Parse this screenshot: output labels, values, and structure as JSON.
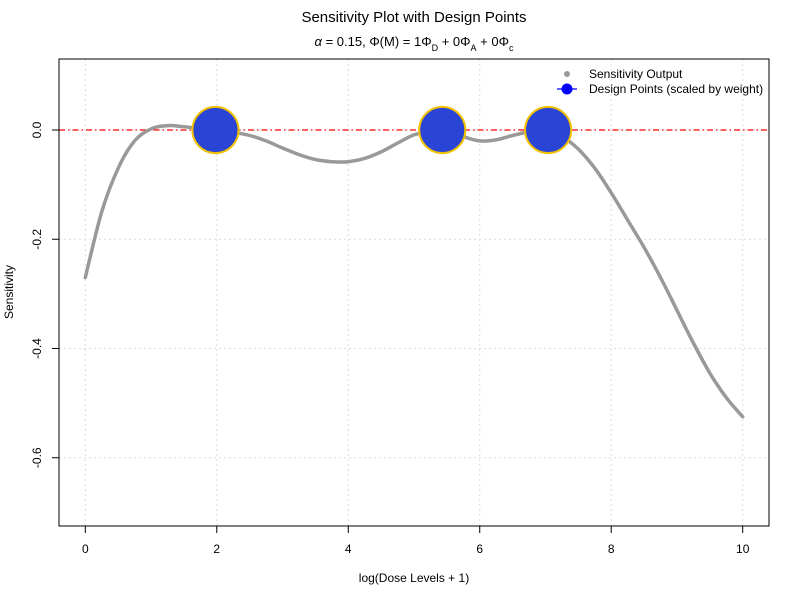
{
  "chart_data": {
    "type": "line",
    "title": "Sensitivity Plot with Design Points",
    "subtitle": {
      "alpha_symbol": "α",
      "alpha_text": " = 0.15, ",
      "phi_text": "Φ(M) = 1Φ",
      "sub_d": "D",
      "plus_a": " + 0Φ",
      "sub_a": "A",
      "plus_c": " + 0Φ",
      "sub_c": "c"
    },
    "xlabel": "log(Dose Levels + 1)",
    "ylabel": "Sensitivity",
    "xlim": [
      -0.4,
      10.4
    ],
    "ylim": [
      -0.725,
      0.13
    ],
    "x_ticks": [
      0,
      2,
      4,
      6,
      8,
      10
    ],
    "x_tick_labels": [
      "0",
      "2",
      "4",
      "6",
      "8",
      "10"
    ],
    "y_ticks": [
      0,
      -0.2,
      -0.4,
      -0.6
    ],
    "y_tick_labels": [
      "0.0",
      "-0.2",
      "-0.4",
      "-0.6"
    ],
    "grid": true,
    "legend_position": "top-right",
    "reference_line_y": 0,
    "series": [
      {
        "name": "Sensitivity Output",
        "color": "#999999",
        "x": [
          0,
          0.25,
          0.5,
          0.75,
          1.0,
          1.25,
          1.5,
          1.75,
          2.0,
          2.25,
          2.5,
          2.75,
          3.0,
          3.25,
          3.5,
          3.75,
          4.0,
          4.25,
          4.5,
          4.75,
          5.0,
          5.25,
          5.5,
          5.75,
          6.0,
          6.25,
          6.5,
          6.75,
          7.0,
          7.25,
          7.5,
          7.75,
          8.0,
          8.25,
          8.5,
          8.75,
          9.0,
          9.25,
          9.5,
          9.75,
          10.0
        ],
        "y": [
          -0.27,
          -0.15,
          -0.07,
          -0.02,
          0.002,
          0.008,
          0.006,
          0.003,
          0.0,
          -0.004,
          -0.01,
          -0.02,
          -0.033,
          -0.045,
          -0.054,
          -0.058,
          -0.058,
          -0.052,
          -0.04,
          -0.024,
          -0.009,
          -0.002,
          0.0,
          -0.012,
          -0.02,
          -0.018,
          -0.01,
          -0.003,
          0.0,
          -0.012,
          -0.035,
          -0.07,
          -0.115,
          -0.165,
          -0.215,
          -0.27,
          -0.33,
          -0.39,
          -0.445,
          -0.49,
          -0.525
        ]
      },
      {
        "name": "Design Points (scaled by weight)",
        "color": "#2a45d6",
        "x": [
          1.98,
          5.43,
          7.04
        ],
        "y": [
          0,
          0,
          0
        ],
        "weights": [
          0.333,
          0.333,
          0.333
        ]
      }
    ]
  }
}
